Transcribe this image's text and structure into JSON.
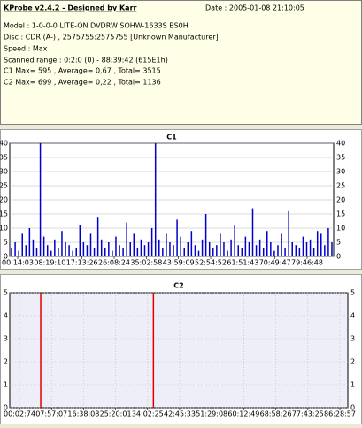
{
  "header": {
    "title": "KProbe v2.4.2 - Designed by Karr",
    "date": "Date : 2005-01-08 21:10:05",
    "lines": [
      "Model : 1-0-0-0 LITE-ON DVDRW SOHW-1633S BS0H",
      "Disc : CDR (A-) , 2575755:2575755 [Unknown Manufacturer]",
      "Speed : Max",
      "Scanned range : 0:2:0 (0) - 88:39:42 (615E1h)",
      "C1 Max= 595 , Average= 0,67 , Total= 3515",
      "C2 Max= 699 , Average= 0,22 , Total= 1136"
    ]
  },
  "chart_data": [
    {
      "type": "bar",
      "title": "C1",
      "color": "#0000cc",
      "grid": true,
      "xticks": [
        "00:14:03",
        "08:19:10",
        "17:13:26",
        "26:08:24",
        "35:02:58",
        "43:59:09",
        "52:54:52",
        "61:51:43",
        "70:49:47",
        "79:46:48"
      ],
      "values": [
        3,
        5,
        2,
        8,
        4,
        10,
        6,
        3,
        40,
        7,
        4,
        2,
        6,
        3,
        9,
        5,
        4,
        2,
        3,
        11,
        5,
        4,
        8,
        3,
        14,
        6,
        3,
        5,
        2,
        7,
        4,
        3,
        12,
        5,
        8,
        3,
        6,
        4,
        5,
        10,
        40,
        6,
        3,
        8,
        5,
        4,
        13,
        7,
        3,
        5,
        9,
        4,
        2,
        6,
        15,
        5,
        3,
        4,
        8,
        5,
        2,
        6,
        11,
        4,
        3,
        7,
        5,
        17,
        4,
        6,
        3,
        9,
        5,
        2,
        4,
        8,
        3,
        16,
        5,
        4,
        3,
        7,
        5,
        6,
        3,
        9,
        8,
        4,
        10,
        5
      ],
      "ylim": [
        0,
        40
      ],
      "yticks": [
        0,
        5,
        10,
        15,
        20,
        25,
        30,
        35,
        40
      ]
    },
    {
      "type": "bar",
      "title": "C2",
      "color": "#e00000",
      "grid": true,
      "xticks": [
        "00:02:74",
        "07:57:07",
        "16:38:08",
        "25:20:01",
        "34:02:25",
        "42:45:33",
        "51:29:08",
        "60:12:49",
        "68:58:26",
        "77:43:25",
        "86:28:57"
      ],
      "values": [
        0,
        0,
        0,
        0,
        0,
        5,
        0,
        0,
        0,
        0,
        0,
        0,
        0,
        0,
        0,
        0,
        0,
        0,
        0,
        0,
        0,
        0,
        0,
        0,
        0,
        5,
        0,
        0,
        0,
        0,
        0,
        0,
        0,
        0,
        0,
        0,
        0,
        0,
        0,
        0,
        0,
        0,
        0,
        0,
        0,
        0,
        0,
        0,
        0,
        0,
        0,
        0,
        0,
        0,
        0,
        0,
        0,
        0,
        0,
        0
      ],
      "ylim": [
        0,
        5
      ],
      "yticks": [
        0,
        1,
        2,
        3,
        4,
        5
      ]
    }
  ]
}
